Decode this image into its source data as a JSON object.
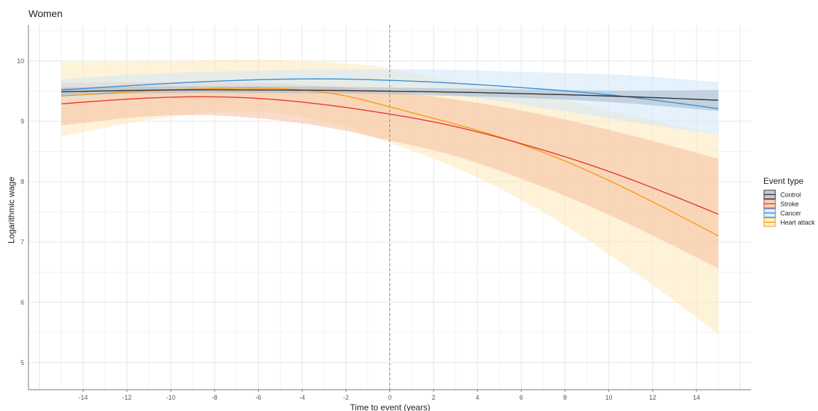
{
  "chart_data": {
    "type": "line",
    "title": "Women",
    "xlabel": "Time to event (years)",
    "ylabel": "Logarithmic wage",
    "xlim": [
      -16.5,
      16.5
    ],
    "ylim": [
      4.55,
      10.6
    ],
    "x_ticks": [
      -14,
      -12,
      -10,
      -8,
      -6,
      -4,
      -2,
      0,
      2,
      4,
      6,
      8,
      10,
      12,
      14
    ],
    "x_tick_labels": [
      "-14",
      "-12",
      "-10",
      "-8",
      "-6",
      "-4",
      "-2",
      "0",
      "2",
      "4",
      "6",
      "8",
      "10",
      "12",
      "14"
    ],
    "y_ticks": [
      5,
      6,
      7,
      8,
      9,
      10
    ],
    "y_tick_labels": [
      "5",
      "6",
      "7",
      "8",
      "9",
      "10"
    ],
    "grid": true,
    "reference_line_x": 0,
    "legend": {
      "title": "Event type",
      "position": "right"
    },
    "series": [
      {
        "name": "Heart attack",
        "color": "#f39c12",
        "band_color": "#fde8b8",
        "x": [
          -15,
          -10,
          -6,
          -2,
          0,
          2,
          6,
          10,
          15
        ],
        "y": [
          9.42,
          9.52,
          9.55,
          9.42,
          9.24,
          9.05,
          8.62,
          8.02,
          7.1
        ],
        "lower": [
          8.75,
          9.08,
          9.15,
          8.9,
          8.64,
          8.38,
          7.7,
          6.8,
          5.47
        ],
        "upper": [
          9.98,
          10.0,
          10.02,
          9.96,
          9.88,
          9.72,
          9.5,
          9.18,
          8.78
        ]
      },
      {
        "name": "Stroke",
        "color": "#e23a2a",
        "band_color": "#f6c0a0",
        "x": [
          -15,
          -10,
          -6,
          -2,
          0,
          2,
          6,
          10,
          15
        ],
        "y": [
          9.29,
          9.4,
          9.38,
          9.23,
          9.12,
          8.99,
          8.63,
          8.17,
          7.46
        ],
        "lower": [
          8.93,
          9.1,
          9.05,
          8.84,
          8.68,
          8.52,
          8.05,
          7.45,
          6.56
        ],
        "upper": [
          9.64,
          9.65,
          9.64,
          9.56,
          9.49,
          9.41,
          9.18,
          8.86,
          8.38
        ]
      },
      {
        "name": "Cancer",
        "color": "#3a8ed6",
        "band_color": "#cfe8fa",
        "x": [
          -15,
          -10,
          -6,
          -2,
          0,
          2,
          6,
          10,
          15
        ],
        "y": [
          9.52,
          9.63,
          9.69,
          9.7,
          9.68,
          9.65,
          9.56,
          9.44,
          9.21
        ],
        "lower": [
          9.36,
          9.5,
          9.56,
          9.57,
          9.53,
          9.47,
          9.28,
          9.05,
          8.78
        ],
        "upper": [
          9.7,
          9.8,
          9.84,
          9.86,
          9.86,
          9.86,
          9.82,
          9.78,
          9.65
        ]
      },
      {
        "name": "Control",
        "color": "#333333",
        "band_color": "#a8b8c8",
        "x": [
          -15,
          -10,
          -6,
          -2,
          0,
          2,
          6,
          10,
          15
        ],
        "y": [
          9.49,
          9.52,
          9.52,
          9.51,
          9.5,
          9.49,
          9.46,
          9.42,
          9.35
        ],
        "lower": [
          9.42,
          9.47,
          9.47,
          9.46,
          9.45,
          9.43,
          9.39,
          9.32,
          9.17
        ],
        "upper": [
          9.56,
          9.58,
          9.58,
          9.57,
          9.56,
          9.55,
          9.53,
          9.51,
          9.52
        ]
      }
    ],
    "legend_order": [
      "Control",
      "Stroke",
      "Cancer",
      "Heart attack"
    ]
  }
}
